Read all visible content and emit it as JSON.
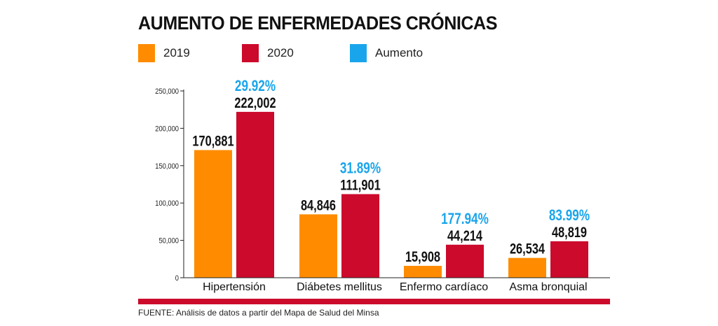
{
  "header": {
    "title": "AUMENTO DE ENFERMEDADES CRÓNICAS"
  },
  "legend": [
    {
      "label": "2019",
      "color": "#ff8c00"
    },
    {
      "label": "2020",
      "color": "#cc0a2c"
    },
    {
      "label": "Aumento",
      "color": "#19a5eb"
    }
  ],
  "footer": {
    "source": "FUENTE: Análisis de datos a partir del Mapa de Salud del Minsa"
  },
  "chart_data": {
    "type": "bar",
    "title": "AUMENTO DE ENFERMEDADES CRÓNICAS",
    "categories": [
      "Hipertensión",
      "Diábetes mellitus",
      "Enfermo cardíaco",
      "Asma bronquial"
    ],
    "series": [
      {
        "name": "2019",
        "color": "#ff8c00",
        "values": [
          170881,
          84846,
          15908,
          26534
        ],
        "labels": [
          "170,881",
          "84,846",
          "15,908",
          "26,534"
        ]
      },
      {
        "name": "2020",
        "color": "#cc0a2c",
        "values": [
          222002,
          111901,
          44214,
          48819
        ],
        "labels": [
          "222,002",
          "111,901",
          "44,214",
          "48,819"
        ]
      }
    ],
    "increase_labels": [
      "29.92%",
      "31.89%",
      "177.94%",
      "83.99%"
    ],
    "increase_color": "#19a5eb",
    "ylim": [
      0,
      250000
    ],
    "yticks": [
      0,
      50000,
      100000,
      150000,
      200000,
      250000
    ],
    "ytick_labels": [
      "0",
      "50,000",
      "100,000",
      "150,000",
      "200,000",
      "250,000"
    ],
    "grid": false,
    "legend_position": "top-left"
  }
}
